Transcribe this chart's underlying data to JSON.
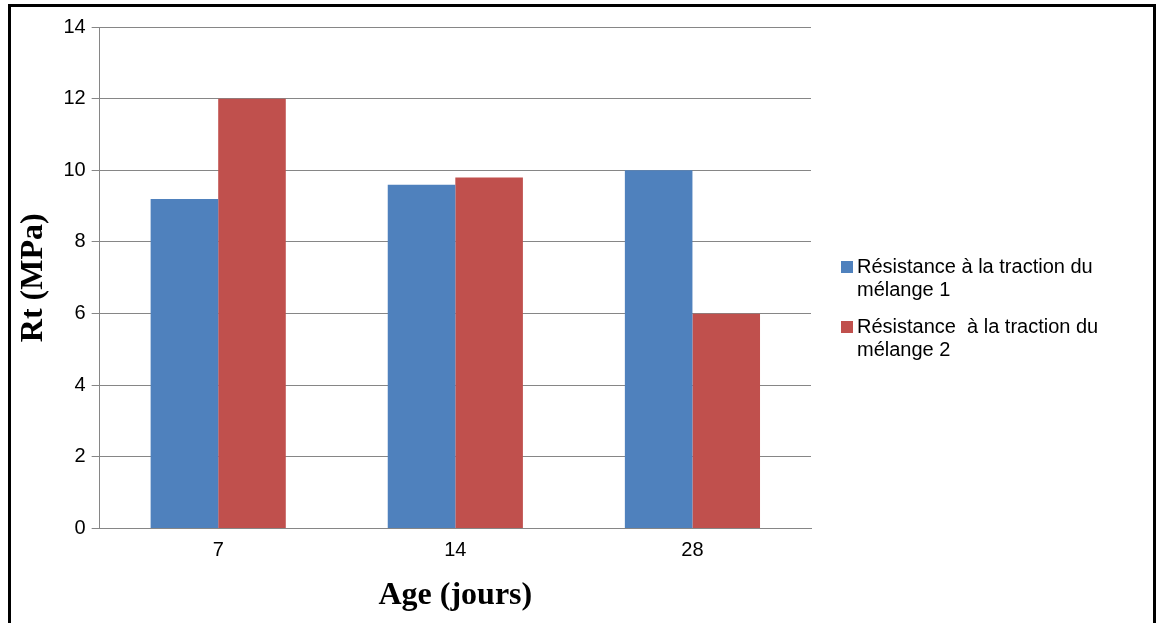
{
  "chart_data": {
    "type": "bar",
    "xlabel": "Age (jours)",
    "ylabel": "Rt (MPa)",
    "categories": [
      "7",
      "14",
      "28"
    ],
    "series": [
      {
        "name": "Résistance à la traction du mélange 1",
        "color": "#4f81bd",
        "values": [
          9.2,
          9.6,
          10.0
        ]
      },
      {
        "name": "Résistance  à la traction du mélange 2",
        "color": "#c0504d",
        "values": [
          12.0,
          9.8,
          6.0
        ]
      }
    ],
    "ylim": [
      0,
      14
    ],
    "yticks": [
      0,
      2,
      4,
      6,
      8,
      10,
      12,
      14
    ],
    "grid": "y",
    "legend": "right"
  }
}
